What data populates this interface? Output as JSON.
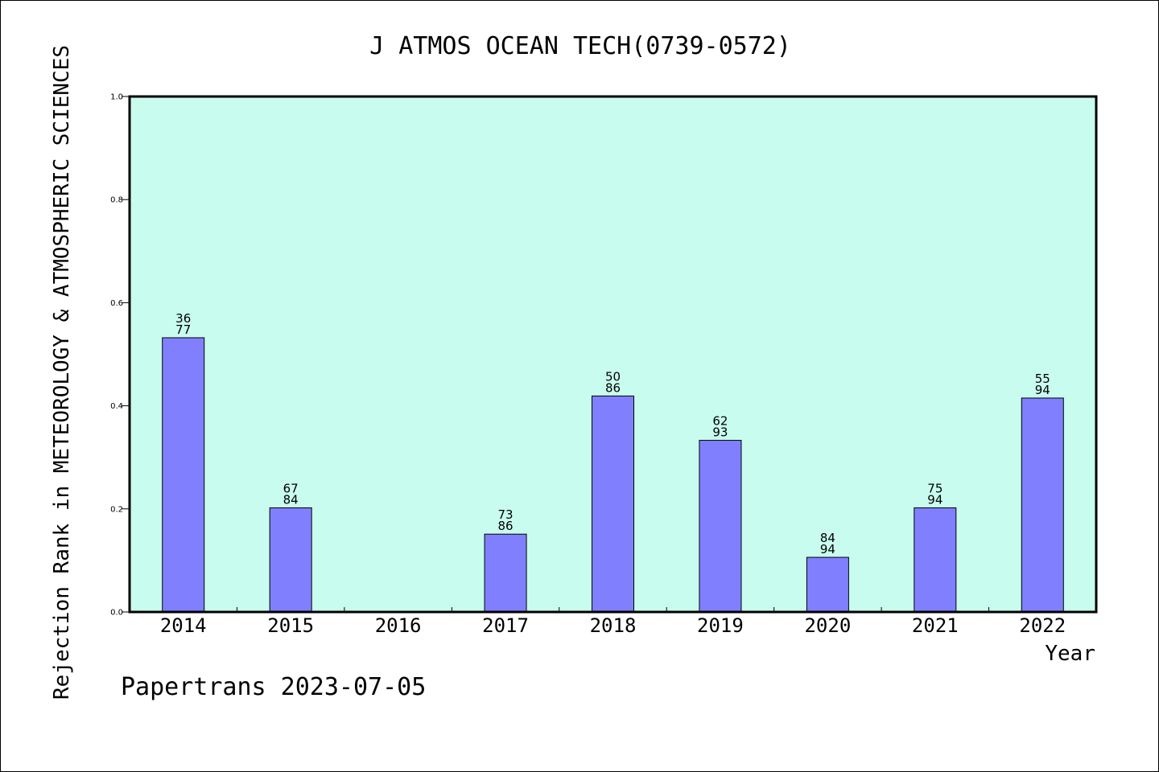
{
  "chart_data": {
    "type": "bar",
    "title": "J ATMOS OCEAN TECH(0739-0572)",
    "xlabel": "Year",
    "ylabel": "Rejection Rank in METEOROLOGY & ATMOSPHERIC SCIENCES",
    "categories": [
      "2014",
      "2015",
      "2016",
      "2017",
      "2018",
      "2019",
      "2020",
      "2021",
      "2022"
    ],
    "values": [
      0.532,
      0.202,
      null,
      0.151,
      0.419,
      0.333,
      0.106,
      0.202,
      0.415
    ],
    "bar_labels": [
      [
        "36",
        "77"
      ],
      [
        "67",
        "84"
      ],
      null,
      [
        "73",
        "86"
      ],
      [
        "50",
        "86"
      ],
      [
        "62",
        "93"
      ],
      [
        "84",
        "94"
      ],
      [
        "75",
        "94"
      ],
      [
        "55",
        "94"
      ]
    ],
    "ylim": [
      0,
      1.0
    ],
    "yticks": [
      "0.0",
      "0.2",
      "0.4",
      "0.6",
      "0.8",
      "1.0"
    ],
    "grid": false,
    "legend": "none",
    "colors": {
      "plot_background": "#c8fcee",
      "bar_fill": "#8080ff",
      "bar_edge": "#000000",
      "axes": "#000000"
    }
  },
  "footer": {
    "text": "Papertrans 2023-07-05"
  }
}
